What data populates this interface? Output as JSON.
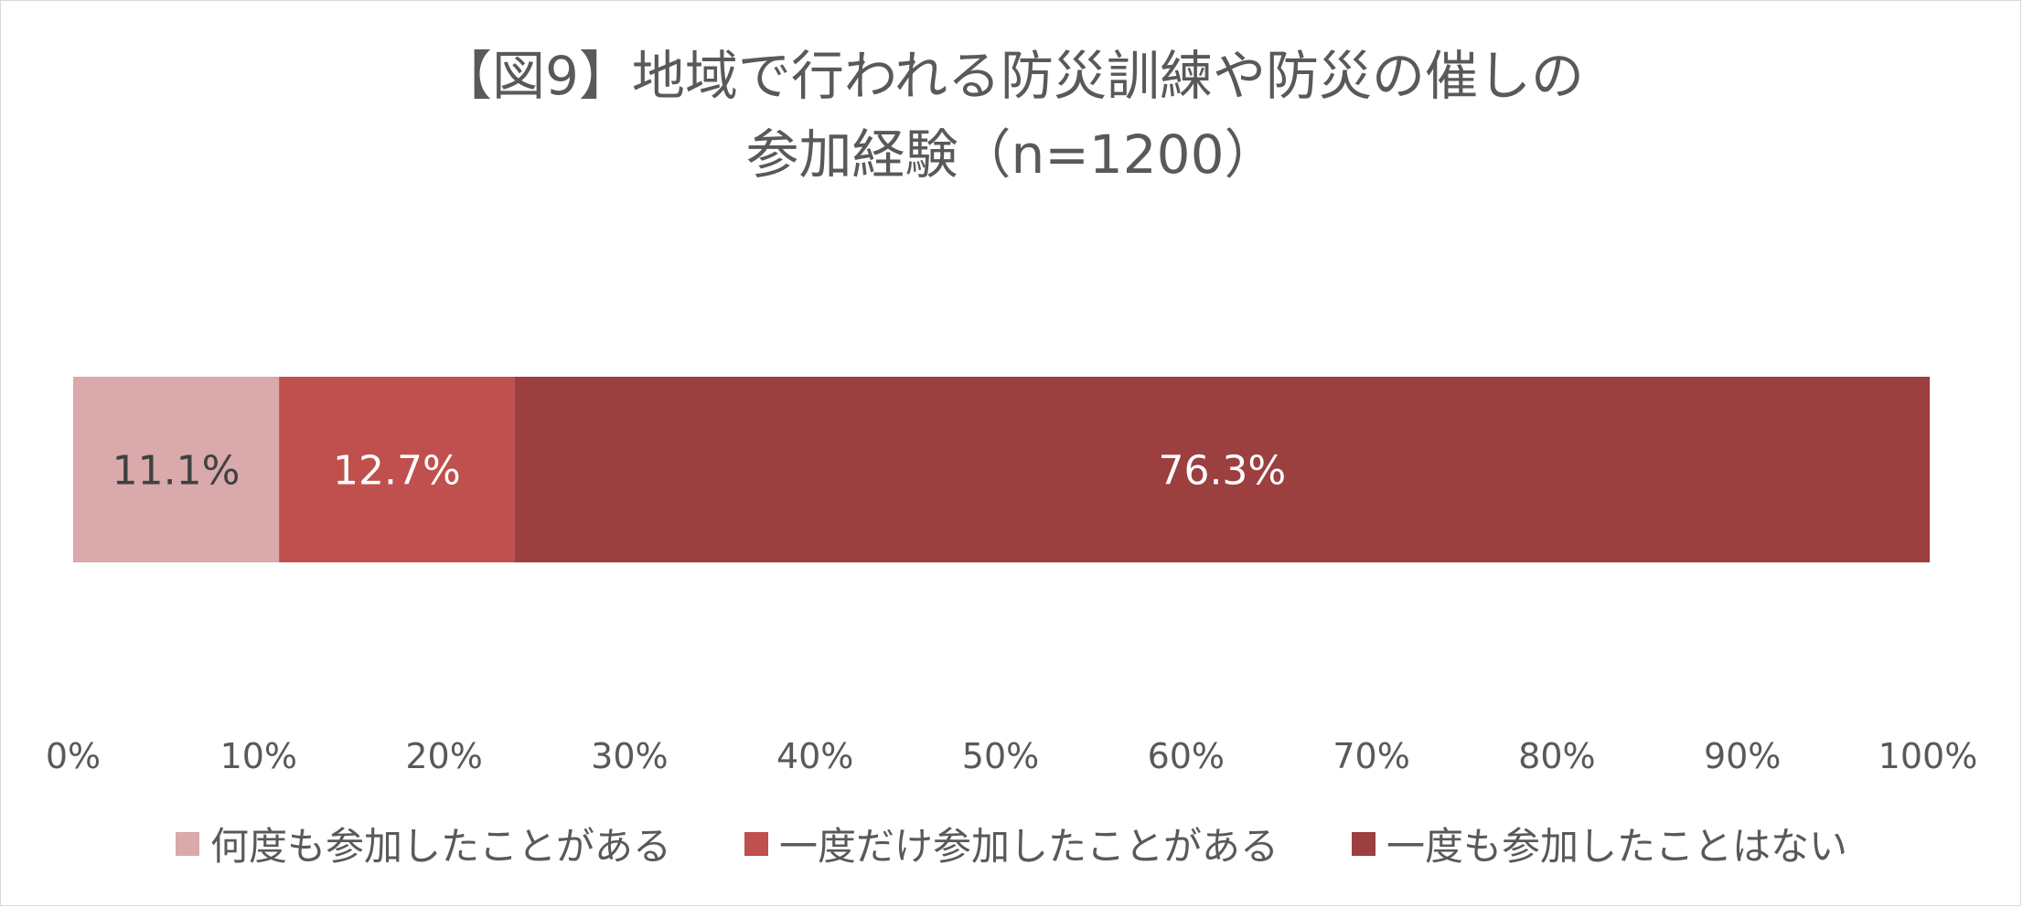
{
  "chart_data": {
    "type": "bar",
    "orientation": "horizontal",
    "stacked": true,
    "title_line1": "【図9】地域で行われる防災訓練や防災の催しの",
    "title_line2": "参加経験（n=1200）",
    "xlim": [
      0,
      100
    ],
    "x_ticks": [
      "0%",
      "10%",
      "20%",
      "30%",
      "40%",
      "50%",
      "60%",
      "70%",
      "80%",
      "90%",
      "100%"
    ],
    "series": [
      {
        "name": "何度も参加したことがある",
        "value": 11.1,
        "label": "11.1%",
        "color": "#d9a9ab",
        "label_color": "#404040"
      },
      {
        "name": "一度だけ参加したことがある",
        "value": 12.7,
        "label": "12.7%",
        "color": "#c0504d",
        "label_color": "#ffffff"
      },
      {
        "name": "一度も参加したことはない",
        "value": 76.3,
        "label": "76.3%",
        "color": "#9c3f3f",
        "label_color": "#ffffff"
      }
    ],
    "grid": false,
    "legend_position": "bottom"
  }
}
